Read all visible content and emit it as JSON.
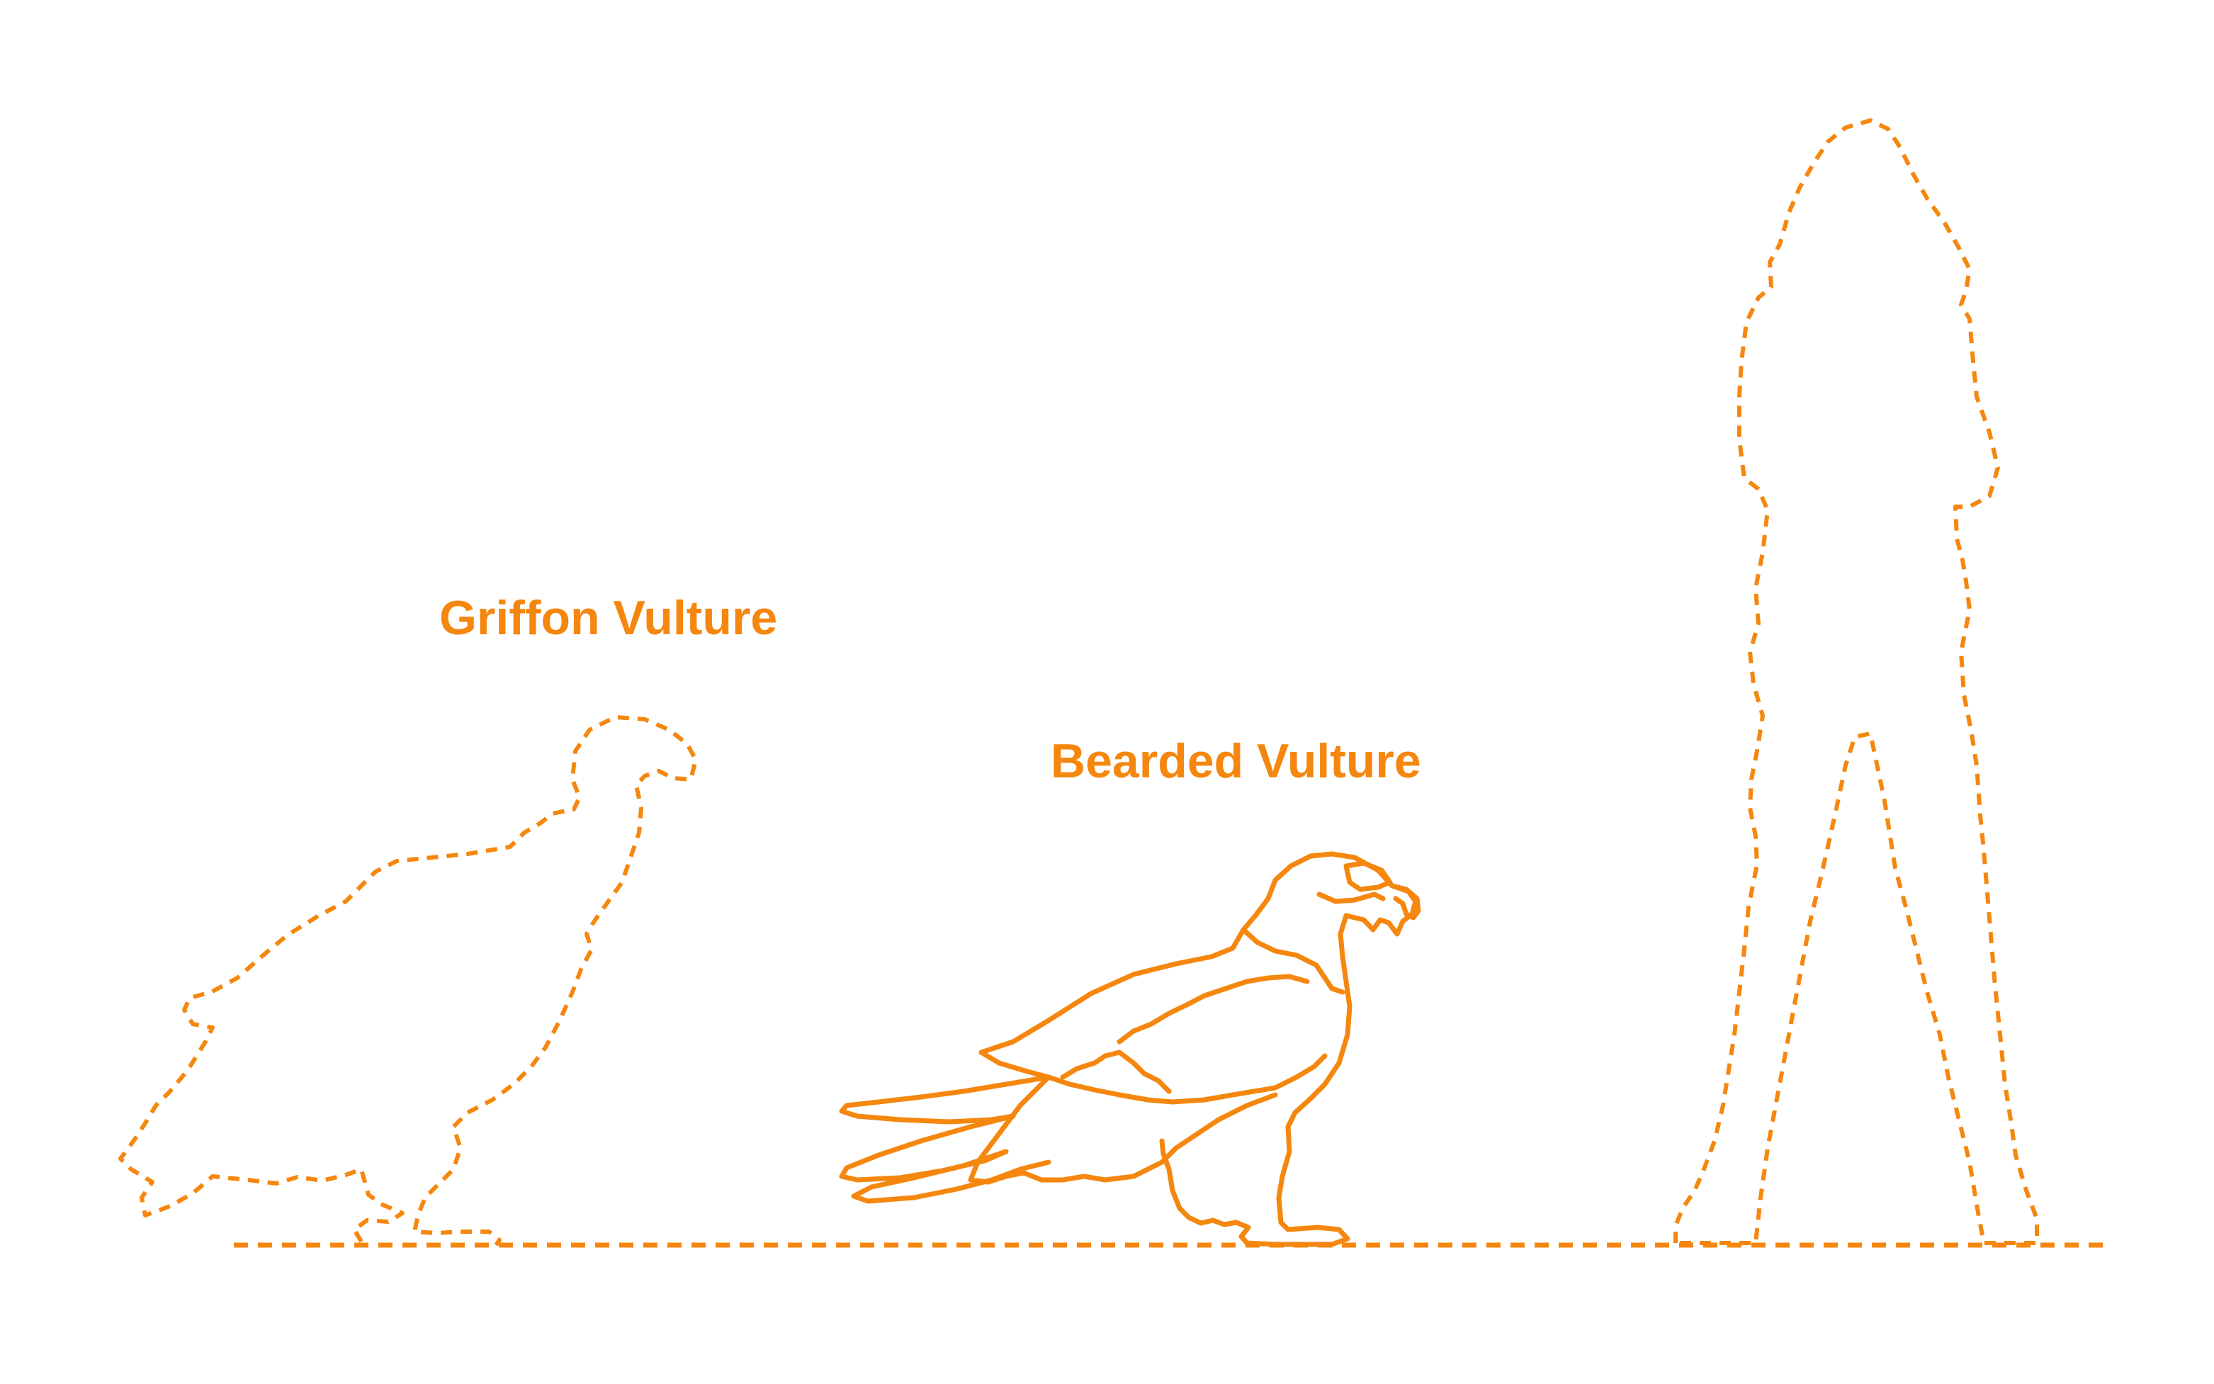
{
  "colors": {
    "accent": "#F5870F",
    "background": "#FFFFFF"
  },
  "labels": {
    "griffon": "Griffon Vulture",
    "bearded": "Bearded Vulture"
  },
  "figures": [
    {
      "name": "griffon-vulture-silhouette",
      "style": "dashed outline"
    },
    {
      "name": "bearded-vulture-illustration",
      "style": "solid line drawing"
    },
    {
      "name": "human-silhouette",
      "style": "dashed outline"
    }
  ]
}
